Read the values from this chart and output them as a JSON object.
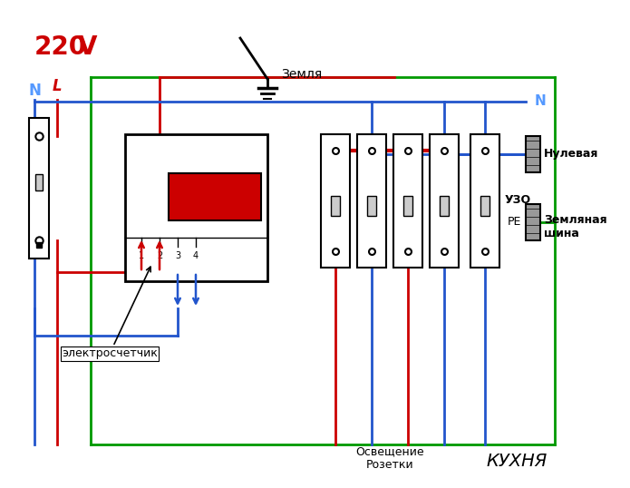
{
  "bg_color": "#ffffff",
  "text_220": "220",
  "text_V": "V",
  "text_N_left": "N",
  "text_L": "L",
  "text_zemlya": "Земля",
  "text_N_right": "N",
  "text_nulevaya": "Нулевая",
  "text_zemlyanaya_shina": "Земляная\nшина",
  "text_RE": "PE",
  "text_UZO": "УЗО",
  "text_electro": "электросчетчик",
  "text_osveshenie": "Освещение\nРозетки",
  "text_kukhnya": "КУХНЯ",
  "color_red": "#cc0000",
  "color_blue": "#2255cc",
  "color_green": "#009900",
  "color_black": "#000000",
  "color_white": "#ffffff",
  "color_gray_light": "#cccccc",
  "color_gray_dark": "#888888",
  "wire_lw": 2.0,
  "fig_w": 6.95,
  "fig_h": 5.38,
  "dpi": 100
}
